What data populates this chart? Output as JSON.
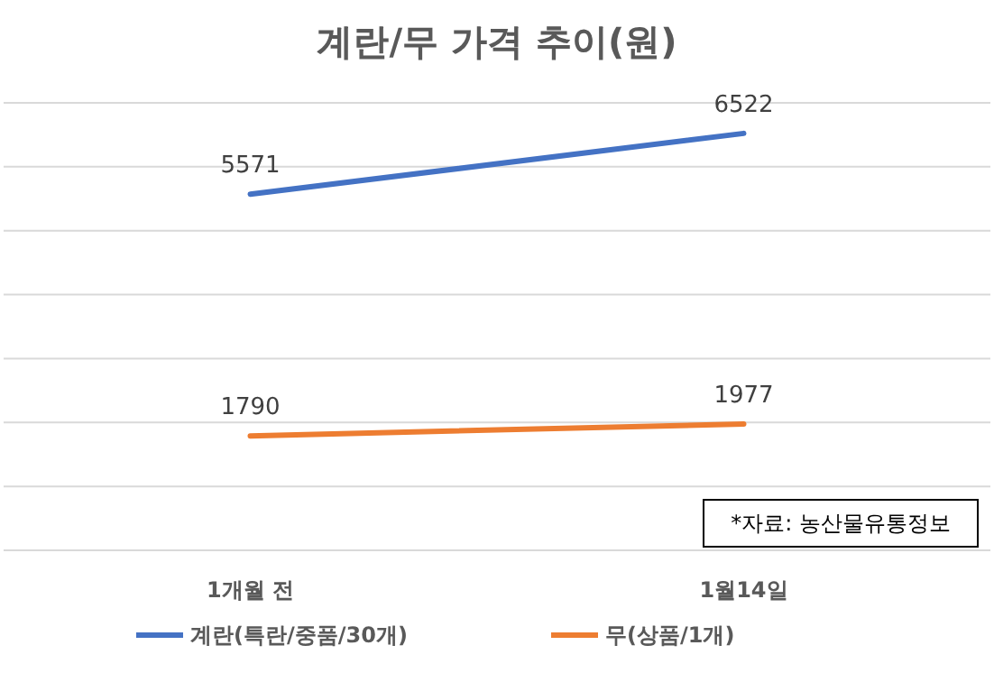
{
  "chart_data": {
    "type": "line",
    "title": "계란/무 가격 추이(원)",
    "categories": [
      "1개월 전",
      "1월14일"
    ],
    "series": [
      {
        "name": "계란(특란/중품/30개)",
        "color": "#4472c4",
        "values": [
          5571,
          6522
        ]
      },
      {
        "name": "무(상품/1개)",
        "color": "#ed7d31",
        "values": [
          1790,
          1977
        ]
      }
    ],
    "ylim": [
      0,
      7000
    ],
    "yticks": [
      {
        "value": 0,
        "label": null
      },
      {
        "value": 1000,
        "label": null
      },
      {
        "value": 2000,
        "label": null
      },
      {
        "value": 3000,
        "label": null
      },
      {
        "value": 4000,
        "label": null
      },
      {
        "value": 5000,
        "label": null
      },
      {
        "value": 6000,
        "label": null
      },
      {
        "value": 7000,
        "label": null
      }
    ],
    "grid": "y",
    "tick_labels": "x",
    "data_labels": true,
    "legend": "bottom",
    "marker": "none",
    "line_style": "solid",
    "annotations": [
      "*자료: 농산물유통정보"
    ]
  }
}
